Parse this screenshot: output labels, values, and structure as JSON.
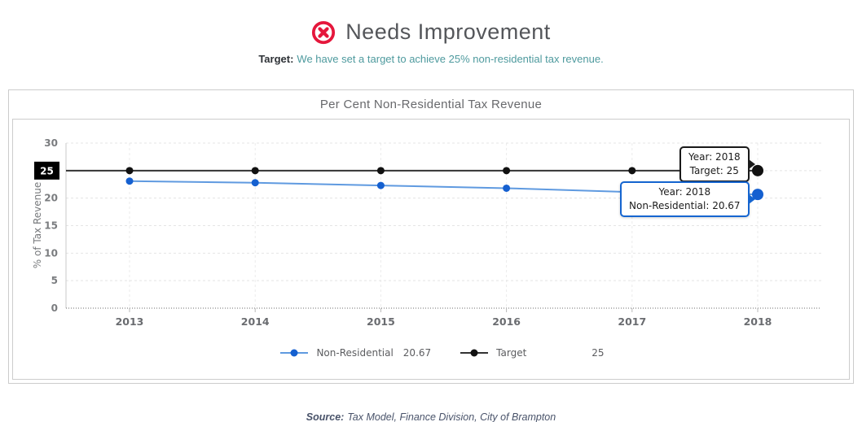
{
  "header": {
    "status_label": "Needs Improvement",
    "status_icon": "circle-x-icon",
    "status_color": "#e5173c",
    "subtitle_prefix": "Target:",
    "subtitle_text": "We have set a target to achieve 25% non-residential tax revenue."
  },
  "card": {
    "title": "Per Cent Non-Residential Tax Revenue"
  },
  "chart_data": {
    "type": "line",
    "title": "Per Cent Non-Residential Tax Revenue",
    "xlabel": "",
    "ylabel": "% of Tax Revenue",
    "x": [
      "2013",
      "2014",
      "2015",
      "2016",
      "2017",
      "2018"
    ],
    "ylim": [
      0,
      30
    ],
    "yticks": [
      0,
      5,
      10,
      15,
      20,
      25,
      30
    ],
    "highlight_ytick": 25,
    "grid": "dashed",
    "legend_position": "bottom",
    "series": [
      {
        "name": "Non-Residential",
        "color": "#1560d0",
        "line_color": "#5f9ae0",
        "values": [
          23.1,
          22.8,
          22.3,
          21.8,
          21.1,
          20.67
        ],
        "legend_value": "20.67",
        "extend_to_axis": false
      },
      {
        "name": "Target",
        "color": "#111111",
        "line_color": "#333333",
        "values": [
          25,
          25,
          25,
          25,
          25,
          25
        ],
        "legend_value": "25",
        "extend_to_axis": true
      }
    ],
    "tooltips": [
      {
        "series_index": 1,
        "line1": "Year: 2018",
        "line2": "Target: 25",
        "border_color": "#1a1a1a"
      },
      {
        "series_index": 0,
        "line1": "Year: 2018",
        "line2": "Non-Residential: 20.67",
        "border_color": "#1565d0"
      }
    ]
  },
  "footer": {
    "source_prefix": "Source:",
    "source_text": "Tax Model, Finance Division, City of Brampton"
  }
}
